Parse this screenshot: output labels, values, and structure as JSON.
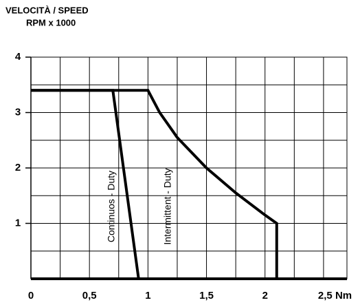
{
  "chart_data": {
    "type": "line",
    "y_label": [
      "VELOCITÀ / SPEED",
      "RPM x 1000"
    ],
    "xlim": [
      0,
      2.7
    ],
    "ylim": [
      0,
      4
    ],
    "xticks": [
      0,
      {
        "value": 0.5,
        "label": "0,5"
      },
      1,
      {
        "value": 1.5,
        "label": "1,5"
      },
      2,
      {
        "value": 2.5,
        "label": "2,5 Nm"
      }
    ],
    "xminor": [
      0.25,
      0.75,
      1.25,
      1.75,
      2.25
    ],
    "yticks": [
      1,
      2,
      3,
      4
    ],
    "yminor": [
      0.5,
      1.5,
      2.5,
      3.5
    ],
    "grid": true,
    "series": [
      {
        "name": "Continuos - Duty",
        "color": "#000000",
        "x": [
          0,
          0.7,
          0.92
        ],
        "values": [
          3.4,
          3.4,
          0
        ]
      },
      {
        "name": "Intermittent - Duty",
        "color": "#000000",
        "x": [
          0,
          1,
          1.1,
          1.25,
          1.5,
          1.75,
          2.0,
          2.1,
          2.1
        ],
        "values": [
          3.4,
          3.4,
          3.0,
          2.55,
          2.0,
          1.55,
          1.15,
          1.0,
          0
        ]
      }
    ]
  }
}
